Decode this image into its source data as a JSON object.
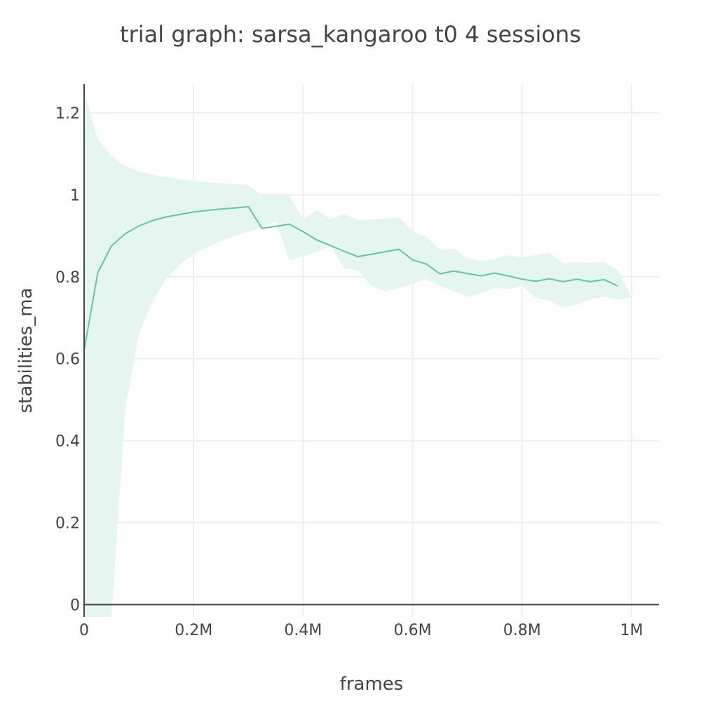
{
  "chart_data": {
    "type": "line",
    "title": "trial graph: sarsa_kangaroo t0 4 sessions",
    "xlabel": "frames",
    "ylabel": "stabilities_ma",
    "xlim": [
      0,
      1050000
    ],
    "ylim": [
      -0.03,
      1.27
    ],
    "x_ticks": [
      {
        "value": 0,
        "label": "0"
      },
      {
        "value": 200000,
        "label": "0.2M"
      },
      {
        "value": 400000,
        "label": "0.4M"
      },
      {
        "value": 600000,
        "label": "0.6M"
      },
      {
        "value": 800000,
        "label": "0.8M"
      },
      {
        "value": 1000000,
        "label": "1M"
      }
    ],
    "y_ticks": [
      {
        "value": 0,
        "label": "0"
      },
      {
        "value": 0.2,
        "label": "0.2"
      },
      {
        "value": 0.4,
        "label": "0.4"
      },
      {
        "value": 0.6,
        "label": "0.6"
      },
      {
        "value": 0.8,
        "label": "0.8"
      },
      {
        "value": 1.0,
        "label": "1"
      },
      {
        "value": 1.2,
        "label": "1.2"
      }
    ],
    "grid": true,
    "legend": "none",
    "colors": {
      "line": "#66c2a5",
      "band": "#e5f5ef",
      "grid": "#eeeeee",
      "axis": "#444444"
    },
    "series": [
      {
        "x": [
          0,
          25000,
          50000,
          75000,
          100000,
          125000,
          150000,
          175000,
          200000,
          225000,
          250000,
          275000,
          300000,
          325000,
          350000,
          375000,
          400000,
          425000,
          450000,
          475000,
          500000,
          525000,
          550000,
          575000,
          600000,
          625000,
          650000,
          675000,
          700000,
          725000,
          750000,
          775000,
          800000,
          825000,
          850000,
          875000,
          900000,
          925000,
          950000,
          975000
        ],
        "values": [
          0.62,
          0.81,
          0.875,
          0.905,
          0.924,
          0.937,
          0.946,
          0.952,
          0.958,
          0.962,
          0.965,
          0.968,
          0.971,
          0.918,
          0.923,
          0.928,
          0.91,
          0.89,
          0.876,
          0.862,
          0.849,
          0.855,
          0.861,
          0.867,
          0.841,
          0.831,
          0.807,
          0.814,
          0.808,
          0.802,
          0.809,
          0.802,
          0.794,
          0.789,
          0.795,
          0.788,
          0.794,
          0.788,
          0.793,
          0.777
        ],
        "band_upper": [
          1.25,
          1.135,
          1.095,
          1.07,
          1.057,
          1.049,
          1.043,
          1.037,
          1.034,
          1.031,
          1.028,
          1.026,
          1.024,
          0.998,
          0.998,
          0.998,
          0.94,
          0.962,
          0.94,
          0.953,
          0.938,
          0.94,
          0.942,
          0.945,
          0.912,
          0.898,
          0.866,
          0.869,
          0.845,
          0.838,
          0.843,
          0.853,
          0.847,
          0.853,
          0.858,
          0.833,
          0.836,
          0.834,
          0.836,
          0.816
        ],
        "band_lower": [
          -0.03,
          -0.03,
          -0.03,
          0.48,
          0.66,
          0.74,
          0.795,
          0.83,
          0.855,
          0.872,
          0.887,
          0.9,
          0.91,
          0.92,
          0.935,
          0.84,
          0.85,
          0.86,
          0.876,
          0.82,
          0.816,
          0.778,
          0.764,
          0.772,
          0.783,
          0.794,
          0.778,
          0.765,
          0.751,
          0.76,
          0.772,
          0.77,
          0.778,
          0.749,
          0.741,
          0.725,
          0.732,
          0.745,
          0.751,
          0.744
        ],
        "band_end": {
          "x": 1000000,
          "value": 0.75
        }
      }
    ]
  }
}
